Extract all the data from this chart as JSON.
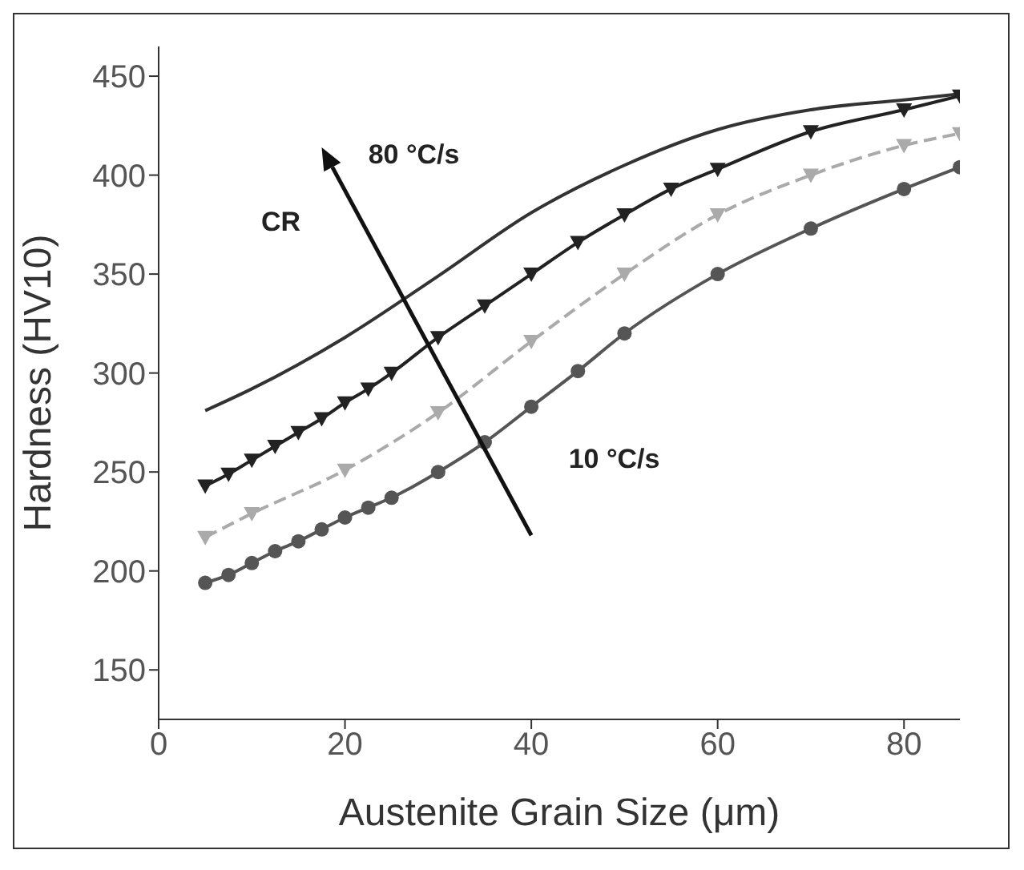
{
  "chart_data": {
    "type": "line",
    "xlabel": "Austenite Grain Size (μm)",
    "ylabel": "Hardness (HV10)",
    "xlim": [
      0,
      86
    ],
    "ylim": [
      125,
      465
    ],
    "xticks": [
      0,
      20,
      40,
      60,
      80
    ],
    "yticks": [
      150,
      200,
      250,
      300,
      350,
      400,
      450
    ],
    "grid": false,
    "annotations": [
      "80 °C/s",
      "CR",
      "10 °C/s"
    ],
    "series": [
      {
        "color": "#333333",
        "marker": "none",
        "line_style": "solid",
        "x": [
          5,
          10,
          20,
          30,
          40,
          50,
          60,
          70,
          80,
          86
        ],
        "values": [
          281,
          292,
          318,
          349,
          381,
          405,
          423,
          433,
          438,
          441
        ]
      },
      {
        "color": "#222222",
        "marker": "triangle",
        "line_style": "solid",
        "x": [
          5,
          7.5,
          10,
          12.5,
          15,
          17.5,
          20,
          22.5,
          25,
          30,
          35,
          40,
          45,
          50,
          55,
          60,
          70,
          80,
          86
        ],
        "values": [
          243,
          249,
          256,
          263,
          270,
          277,
          285,
          292,
          300,
          318,
          334,
          350,
          366,
          380,
          393,
          403,
          422,
          433,
          440
        ]
      },
      {
        "color": "#aaaaaa",
        "marker": "triangle",
        "line_style": "dashed",
        "x": [
          5,
          10,
          20,
          30,
          40,
          50,
          60,
          70,
          80,
          86
        ],
        "values": [
          217,
          229,
          251,
          280,
          316,
          350,
          380,
          400,
          415,
          421
        ]
      },
      {
        "color": "#555555",
        "marker": "circle",
        "line_style": "solid",
        "x": [
          5,
          7.5,
          10,
          12.5,
          15,
          17.5,
          20,
          22.5,
          25,
          30,
          35,
          40,
          45,
          50,
          60,
          70,
          80,
          86
        ],
        "values": [
          194,
          198,
          204,
          210,
          215,
          221,
          227,
          232,
          237,
          250,
          265,
          283,
          301,
          320,
          350,
          373,
          393,
          404
        ]
      }
    ]
  }
}
